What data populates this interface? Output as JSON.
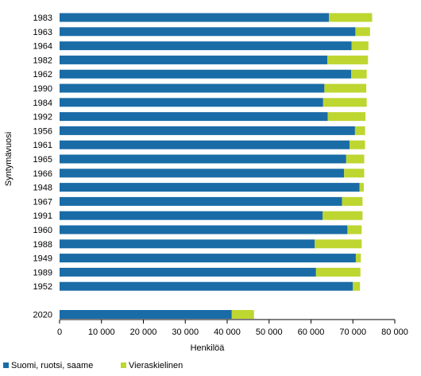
{
  "chart_data": {
    "type": "bar",
    "orientation": "horizontal",
    "stacked": true,
    "title": "",
    "xlabel": "Henkilöä",
    "ylabel": "Syntymävuosi",
    "xlim": [
      0,
      80000
    ],
    "x_ticks": [
      {
        "value": 0,
        "label": "0"
      },
      {
        "value": 10000,
        "label": "10 000"
      },
      {
        "value": 20000,
        "label": "20 000"
      },
      {
        "value": 30000,
        "label": "30 000"
      },
      {
        "value": 40000,
        "label": "40 000"
      },
      {
        "value": 50000,
        "label": "50 000"
      },
      {
        "value": 60000,
        "label": "60 000"
      },
      {
        "value": 70000,
        "label": "70 000"
      },
      {
        "value": 80000,
        "label": "80 000"
      }
    ],
    "grid": false,
    "legend": "bottom",
    "categories": [
      "1983",
      "1963",
      "1964",
      "1982",
      "1962",
      "1990",
      "1984",
      "1992",
      "1956",
      "1961",
      "1965",
      "1966",
      "1948",
      "1967",
      "1991",
      "1960",
      "1988",
      "1949",
      "1989",
      "1952",
      "2020"
    ],
    "gap_before_last": true,
    "series": [
      {
        "name": "Suomi, ruotsi, saame",
        "color": "#1a6ca6",
        "values": [
          64300,
          70600,
          69700,
          63900,
          69600,
          63200,
          62900,
          64000,
          70500,
          69200,
          68400,
          67900,
          71600,
          67400,
          62800,
          68700,
          60900,
          70700,
          61200,
          70000,
          41100
        ]
      },
      {
        "name": "Vieraskielinen",
        "color": "#bed630",
        "values": [
          10300,
          3500,
          4000,
          9700,
          3700,
          10000,
          10400,
          9000,
          2400,
          3700,
          4300,
          4800,
          1000,
          4900,
          9500,
          3400,
          11200,
          1200,
          10600,
          1700,
          5300
        ]
      }
    ]
  }
}
